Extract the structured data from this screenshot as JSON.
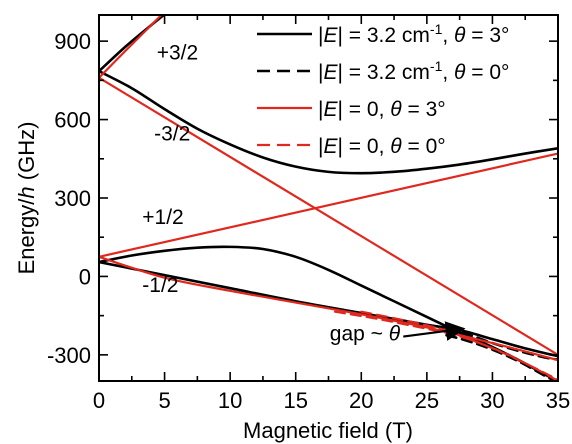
{
  "chart_data": {
    "type": "line",
    "xlabel": "Magnetic field (T)",
    "ylabel": "Energy/h (GHz)",
    "xlim": [
      0,
      35
    ],
    "ylim": [
      -400,
      1000
    ],
    "xticks": [
      0,
      5,
      10,
      15,
      20,
      25,
      30,
      35
    ],
    "yticks": [
      -300,
      0,
      300,
      600,
      900
    ],
    "grid": false,
    "legend_position": "top-right",
    "colors": {
      "black": "#000000",
      "red": "#e0281e"
    },
    "legend": [
      {
        "pre": "|",
        "it1": "E",
        "mid": "| = 3.2 cm",
        "sup": "-1",
        "sep": ", ",
        "it2": "θ",
        "post": " = 3°",
        "color": "#000000",
        "dash": "solid"
      },
      {
        "pre": "|",
        "it1": "E",
        "mid": "| = 3.2 cm",
        "sup": "-1",
        "sep": ", ",
        "it2": "θ",
        "post": " = 0°",
        "color": "#000000",
        "dash": "dashed"
      },
      {
        "pre": "|",
        "it1": "E",
        "mid": "| = 0",
        "sup": "",
        "sep": ", ",
        "it2": "θ",
        "post": " = 3°",
        "color": "#e0281e",
        "dash": "solid"
      },
      {
        "pre": "|",
        "it1": "E",
        "mid": "| = 0",
        "sup": "",
        "sep": ", ",
        "it2": "θ",
        "post": " = 0°",
        "color": "#e0281e",
        "dash": "dashed"
      }
    ],
    "level_labels": [
      {
        "text": "+3/2",
        "x": 4.4,
        "y": 830
      },
      {
        "text": "-3/2",
        "x": 4.2,
        "y": 520
      },
      {
        "text": "+1/2",
        "x": 3.3,
        "y": 200
      },
      {
        "text": "-1/2",
        "x": 3.3,
        "y": -60
      }
    ],
    "annotation": {
      "text": "gap ~ ",
      "symbol": "θ",
      "text_at": [
        17.6,
        -245
      ],
      "arrow_from": [
        23.2,
        -230
      ],
      "arrow_to": [
        27.8,
        -200
      ]
    },
    "series": [
      {
        "color": "#000000",
        "dash": "solid",
        "x": [
          0,
          2,
          4,
          6,
          8
        ],
        "y": [
          785,
          878,
          962,
          1042,
          1120
        ]
      },
      {
        "color": "#000000",
        "dash": "solid",
        "x": [
          0,
          2.5,
          5,
          7.5,
          10,
          12.5,
          15,
          17.5,
          20,
          22.5,
          25,
          27.5,
          30,
          32.5,
          35
        ],
        "y": [
          785,
          720,
          640,
          565,
          505,
          455,
          420,
          400,
          395,
          400,
          412,
          428,
          448,
          470,
          490
        ]
      },
      {
        "color": "#000000",
        "dash": "solid",
        "x": [
          0,
          2.5,
          5,
          7.5,
          10,
          12.5,
          15,
          17.5,
          20,
          22.5,
          25,
          27.5,
          30,
          32,
          34,
          35
        ],
        "y": [
          55,
          80,
          98,
          110,
          113,
          105,
          75,
          25,
          -35,
          -95,
          -155,
          -215,
          -270,
          -320,
          -375,
          -400
        ]
      },
      {
        "color": "#000000",
        "dash": "solid",
        "x": [
          0,
          5,
          10,
          15,
          20,
          25,
          27.5,
          30,
          32.5,
          35
        ],
        "y": [
          55,
          5,
          -45,
          -95,
          -140,
          -185,
          -205,
          -240,
          -275,
          -305
        ]
      },
      {
        "color": "#000000",
        "dash": "dashed",
        "x": [
          26.5,
          28,
          30,
          32,
          34,
          35
        ],
        "y": [
          -205,
          -220,
          -255,
          -285,
          -310,
          -318
        ]
      },
      {
        "color": "#000000",
        "dash": "dashed",
        "x": [
          26.5,
          28,
          30,
          32,
          34,
          35
        ],
        "y": [
          -225,
          -245,
          -280,
          -325,
          -380,
          -405
        ]
      },
      {
        "color": "#e0281e",
        "dash": "solid",
        "x": [
          0,
          2,
          4,
          6
        ],
        "y": [
          760,
          862,
          962,
          1062
        ]
      },
      {
        "color": "#e0281e",
        "dash": "solid",
        "x": [
          0,
          35
        ],
        "y": [
          760,
          -300
        ]
      },
      {
        "color": "#e0281e",
        "dash": "solid",
        "x": [
          0,
          35
        ],
        "y": [
          75,
          470
        ]
      },
      {
        "color": "#e0281e",
        "dash": "solid",
        "x": [
          0,
          5,
          10,
          15,
          20,
          25,
          30,
          35
        ],
        "y": [
          75,
          -5,
          -55,
          -100,
          -145,
          -195,
          -255,
          -320
        ]
      },
      {
        "color": "#e0281e",
        "dash": "dashed",
        "x": [
          18,
          21,
          24,
          27,
          29,
          31,
          33,
          35
        ],
        "y": [
          -135,
          -160,
          -190,
          -222,
          -255,
          -295,
          -345,
          -400
        ]
      },
      {
        "color": "#e0281e",
        "dash": "dashed",
        "x": [
          20,
          23,
          26,
          28,
          30,
          32,
          35
        ],
        "y": [
          -135,
          -165,
          -200,
          -235,
          -275,
          -320,
          -395
        ]
      }
    ]
  }
}
